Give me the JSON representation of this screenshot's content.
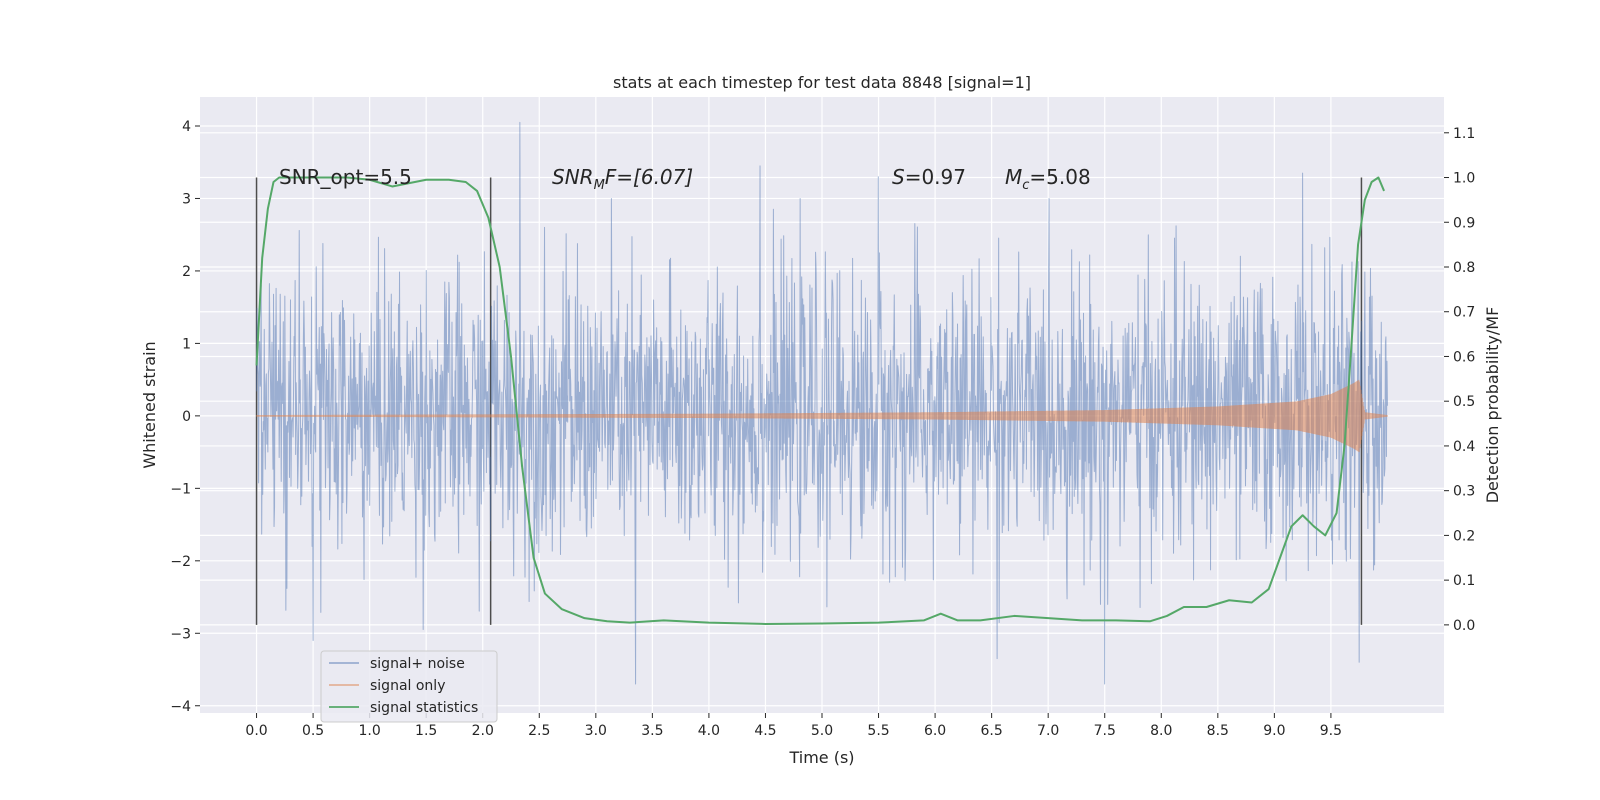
{
  "chart_data": {
    "type": "line",
    "title": "stats at each timestep for test data 8848 [signal=1]",
    "xlabel": "Time (s)",
    "ylabel_left": "Whitened strain",
    "ylabel_right": "Detection probability/MF",
    "xlim": [
      -0.5,
      10.5
    ],
    "ylim_left": [
      -4.1,
      4.4
    ],
    "ylim_right": [
      -0.197,
      1.18
    ],
    "x_ticks": [
      "0.0",
      "0.5",
      "1.0",
      "1.5",
      "2.0",
      "2.5",
      "3.0",
      "3.5",
      "4.0",
      "4.5",
      "5.0",
      "5.5",
      "6.0",
      "6.5",
      "7.0",
      "7.5",
      "8.0",
      "8.5",
      "9.0",
      "9.5"
    ],
    "left_ticks": [
      "−4",
      "−3",
      "−2",
      "−1",
      "0",
      "1",
      "2",
      "3",
      "4"
    ],
    "right_ticks": [
      "0.0",
      "0.1",
      "0.2",
      "0.3",
      "0.4",
      "0.5",
      "0.6",
      "0.7",
      "0.8",
      "0.9",
      "1.0",
      "1.1"
    ],
    "grid": true,
    "legend_position": "lower-left",
    "annotations": {
      "snr_opt": "SNR_opt=5.5",
      "snr_mf_main": "SNR",
      "snr_mf_sub": "M",
      "snr_mf_rest": "F=[6.07]",
      "s_label": "S",
      "s_value": "=0.97",
      "mc_label": "M",
      "mc_sub": "c",
      "mc_value": "=5.08"
    },
    "vertical_markers_x": [
      0.0,
      2.07,
      9.77
    ],
    "series": [
      {
        "name": "signal+ noise",
        "color": "#4c72b0",
        "x_range": [
          0.0,
          10.0
        ],
        "typical_envelope": [
          -1.8,
          2.0
        ],
        "peaks": [
          {
            "x": 2.33,
            "y": 4.05
          },
          {
            "x": 4.45,
            "y": 3.45
          },
          {
            "x": 5.5,
            "y": 3.3
          },
          {
            "x": 9.25,
            "y": 3.35
          },
          {
            "x": 3.35,
            "y": -3.7
          },
          {
            "x": 7.5,
            "y": -3.7
          },
          {
            "x": 9.75,
            "y": -3.4
          },
          {
            "x": 0.5,
            "y": -3.1
          },
          {
            "x": 6.55,
            "y": -3.35
          }
        ]
      },
      {
        "name": "signal only",
        "color": "#dd8452",
        "x_range": [
          0.0,
          10.0
        ],
        "amplitude_envelope": [
          [
            0.0,
            0.01
          ],
          [
            2.0,
            0.02
          ],
          [
            4.0,
            0.03
          ],
          [
            6.0,
            0.05
          ],
          [
            7.5,
            0.08
          ],
          [
            8.5,
            0.13
          ],
          [
            9.2,
            0.2
          ],
          [
            9.5,
            0.3
          ],
          [
            9.7,
            0.45
          ],
          [
            9.75,
            0.5
          ],
          [
            9.8,
            0.05
          ],
          [
            10.0,
            0.01
          ]
        ]
      },
      {
        "name": "signal statistics",
        "color": "#55a868",
        "axis": "right",
        "x": [
          0.0,
          0.05,
          0.1,
          0.15,
          0.2,
          0.3,
          0.5,
          0.8,
          1.0,
          1.2,
          1.3,
          1.5,
          1.7,
          1.85,
          1.95,
          2.05,
          2.15,
          2.25,
          2.35,
          2.45,
          2.55,
          2.7,
          2.9,
          3.1,
          3.3,
          3.6,
          4.0,
          4.5,
          5.0,
          5.5,
          5.9,
          6.05,
          6.2,
          6.4,
          6.7,
          7.0,
          7.3,
          7.6,
          7.9,
          8.05,
          8.2,
          8.4,
          8.6,
          8.8,
          8.95,
          9.05,
          9.15,
          9.25,
          9.35,
          9.45,
          9.55,
          9.62,
          9.68,
          9.74,
          9.8,
          9.86,
          9.92,
          9.97
        ],
        "y": [
          0.58,
          0.82,
          0.93,
          0.99,
          1.0,
          1.0,
          1.0,
          1.0,
          0.995,
          0.98,
          0.985,
          0.995,
          0.995,
          0.99,
          0.97,
          0.91,
          0.8,
          0.6,
          0.35,
          0.15,
          0.07,
          0.035,
          0.015,
          0.008,
          0.005,
          0.01,
          0.005,
          0.002,
          0.003,
          0.005,
          0.01,
          0.025,
          0.01,
          0.01,
          0.02,
          0.015,
          0.01,
          0.01,
          0.008,
          0.02,
          0.04,
          0.04,
          0.055,
          0.05,
          0.08,
          0.15,
          0.22,
          0.245,
          0.22,
          0.2,
          0.25,
          0.4,
          0.62,
          0.85,
          0.95,
          0.99,
          1.0,
          0.97
        ]
      }
    ]
  }
}
